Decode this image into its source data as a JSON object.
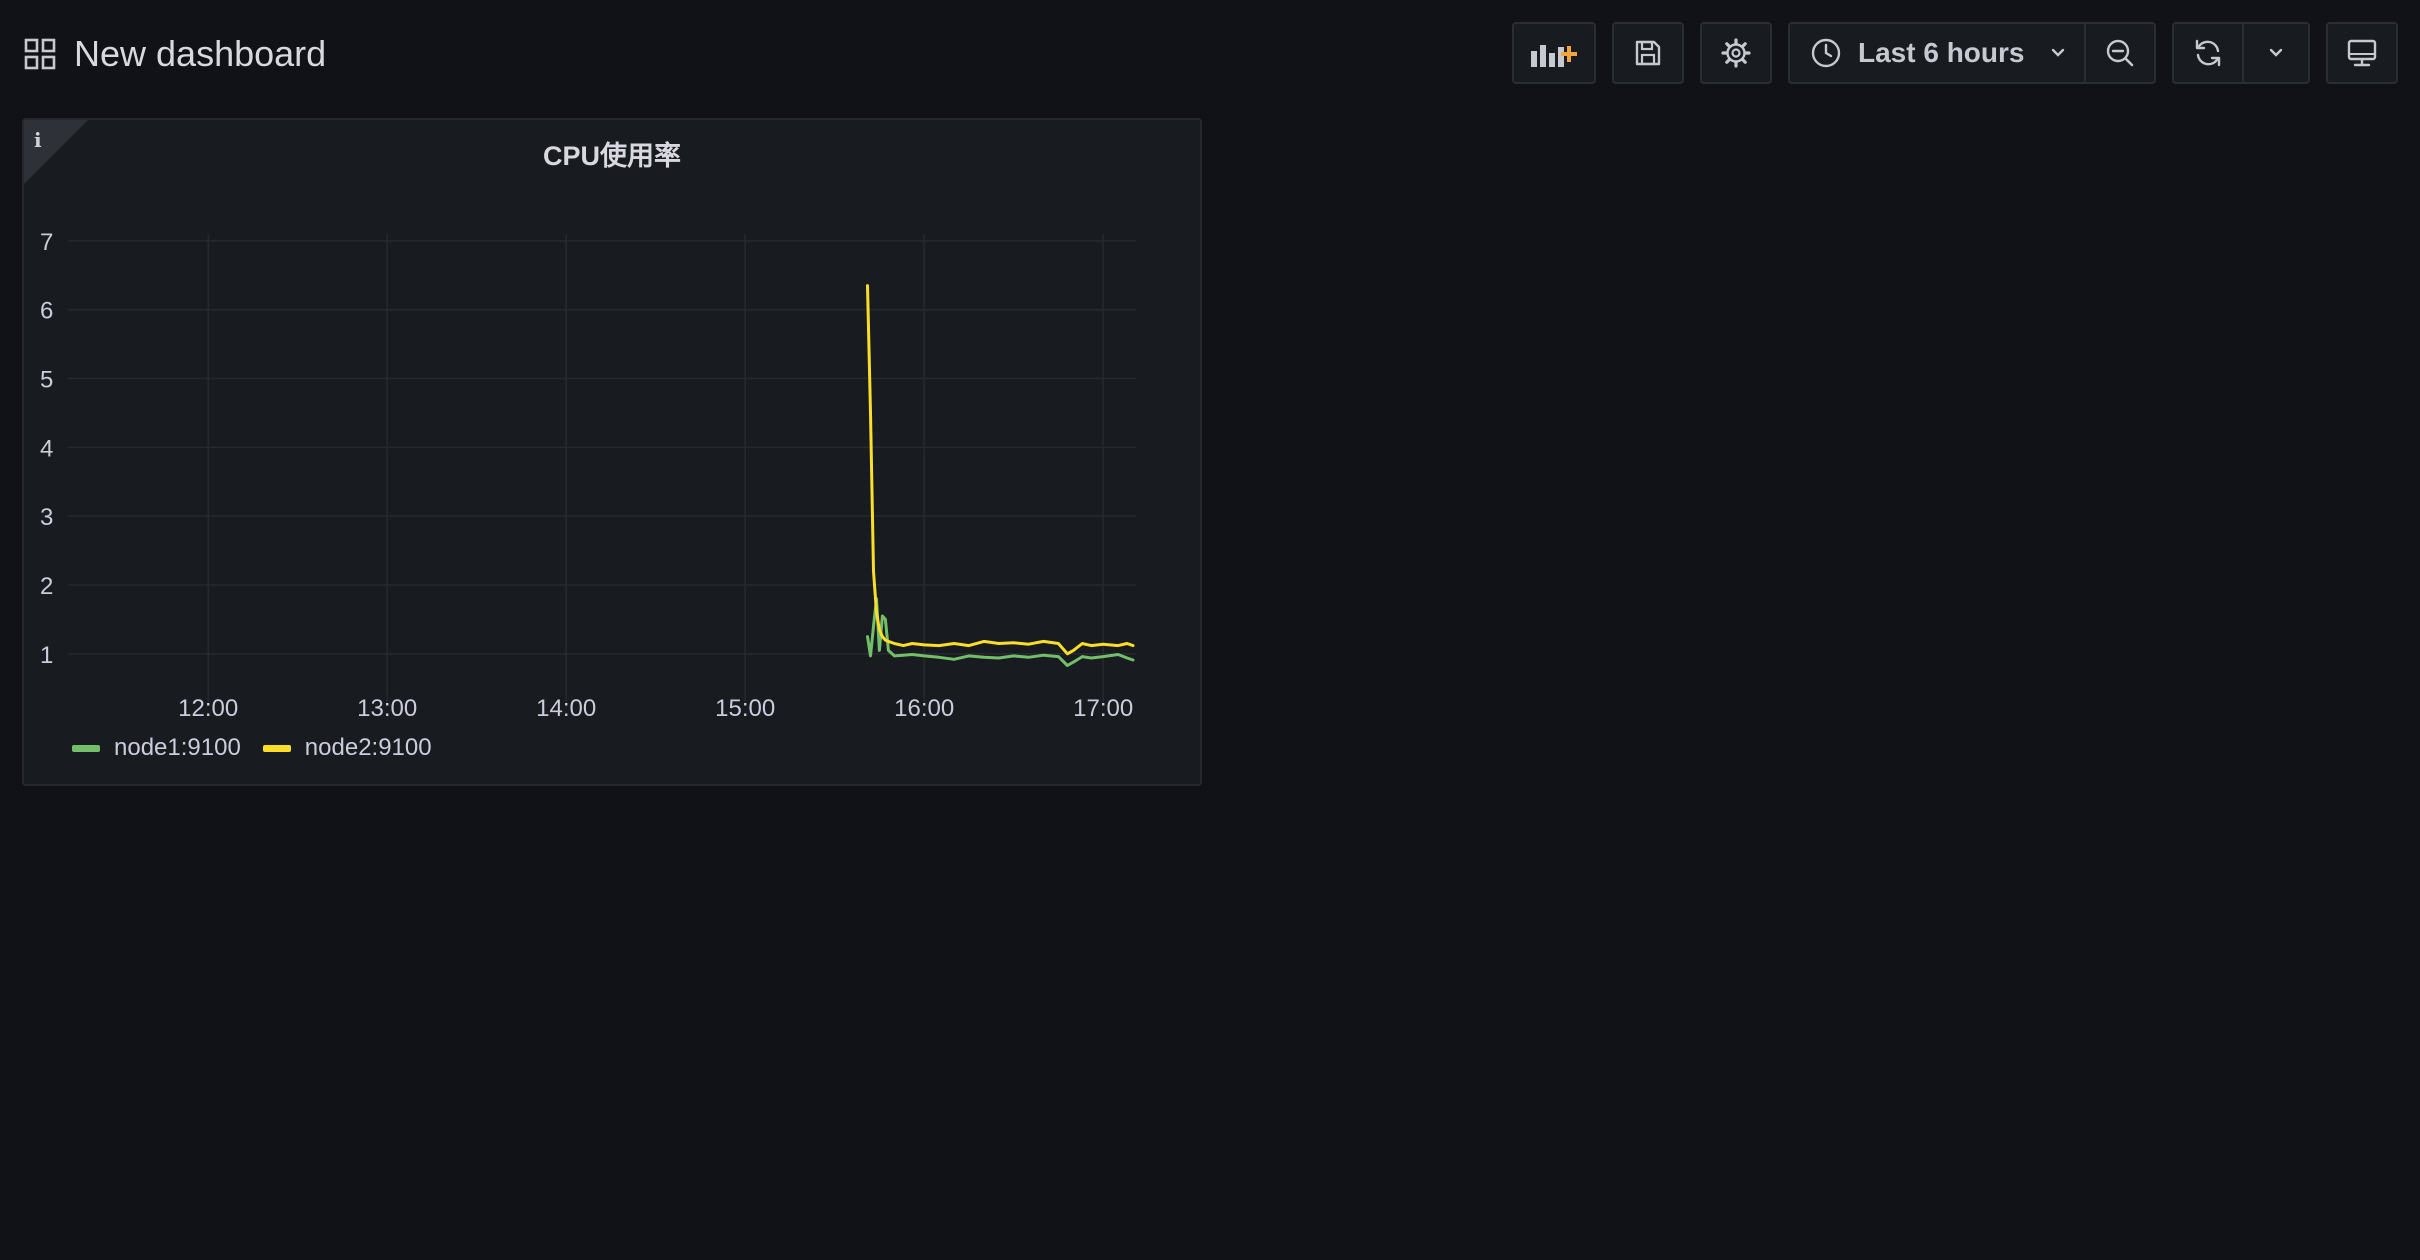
{
  "dashboard": {
    "title": "New dashboard",
    "grid_icon": "dashboard-grid-icon"
  },
  "toolbar": {
    "add_panel_icon": "add-panel-icon",
    "save_icon": "save-icon",
    "settings_icon": "gear-icon",
    "time_range_label": "Last 6 hours",
    "clock_icon": "clock-icon",
    "time_range_chevron_icon": "chevron-down-icon",
    "zoom_out_icon": "zoom-out-icon",
    "refresh_icon": "refresh-icon",
    "refresh_interval_chevron_icon": "chevron-down-icon",
    "tv_mode_icon": "monitor-icon",
    "accent_color": "#f2a63c"
  },
  "panel": {
    "title": "CPU使用率",
    "info_icon_glyph": "i"
  },
  "chart_data": {
    "type": "line",
    "title": "CPU使用率",
    "x_ticks": [
      "12:00",
      "13:00",
      "14:00",
      "15:00",
      "16:00",
      "17:00"
    ],
    "y_ticks": [
      "1",
      "2",
      "3",
      "4",
      "5",
      "6",
      "7"
    ],
    "xlim": [
      "11:13",
      "17:11"
    ],
    "ylim": [
      0.3,
      7.1
    ],
    "grid": true,
    "legend": "bottom-left",
    "series": [
      {
        "name": "node1:9100",
        "color": "#73bf69",
        "x": [
          "15:41",
          "15:42",
          "15:43",
          "15:44",
          "15:45",
          "15:46",
          "15:47",
          "15:48",
          "15:50",
          "15:53",
          "15:56",
          "16:00",
          "16:05",
          "16:10",
          "16:15",
          "16:20",
          "16:25",
          "16:30",
          "16:35",
          "16:40",
          "16:45",
          "16:48",
          "16:50",
          "16:53",
          "16:56",
          "17:00",
          "17:05",
          "17:08",
          "17:10"
        ],
        "values": [
          1.25,
          0.97,
          1.4,
          1.8,
          1.05,
          1.55,
          1.5,
          1.05,
          0.97,
          0.98,
          0.99,
          0.97,
          0.95,
          0.92,
          0.97,
          0.95,
          0.94,
          0.97,
          0.95,
          0.98,
          0.96,
          0.83,
          0.88,
          0.96,
          0.94,
          0.96,
          0.99,
          0.94,
          0.91
        ]
      },
      {
        "name": "node2:9100",
        "color": "#fade2a",
        "x": [
          "15:41",
          "15:42",
          "15:43",
          "15:44",
          "15:45",
          "15:46",
          "15:47",
          "15:48",
          "15:50",
          "15:53",
          "15:56",
          "16:00",
          "16:05",
          "16:10",
          "16:15",
          "16:20",
          "16:25",
          "16:30",
          "16:35",
          "16:40",
          "16:45",
          "16:48",
          "16:50",
          "16:53",
          "16:56",
          "17:00",
          "17:05",
          "17:08",
          "17:10"
        ],
        "values": [
          6.35,
          4.5,
          2.2,
          1.6,
          1.35,
          1.25,
          1.2,
          1.18,
          1.15,
          1.12,
          1.15,
          1.13,
          1.12,
          1.15,
          1.12,
          1.18,
          1.15,
          1.16,
          1.14,
          1.18,
          1.15,
          1.0,
          1.05,
          1.15,
          1.12,
          1.14,
          1.12,
          1.15,
          1.12
        ]
      }
    ]
  }
}
